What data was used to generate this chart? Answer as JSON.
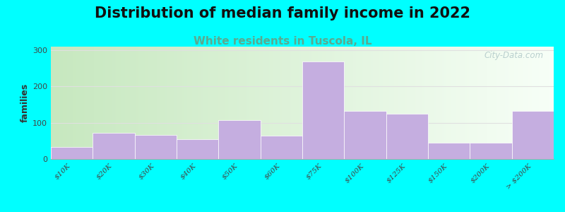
{
  "title": "Distribution of median family income in 2022",
  "subtitle": "White residents in Tuscola, IL",
  "ylabel": "families",
  "categories": [
    "$10K",
    "$20K",
    "$30K",
    "$40K",
    "$50K",
    "$60K",
    "$75K",
    "$100K",
    "$125K",
    "$150K",
    "$200K",
    "> $200K"
  ],
  "values": [
    33,
    72,
    67,
    55,
    107,
    65,
    270,
    133,
    125,
    45,
    45,
    133
  ],
  "bar_color": "#c5aee0",
  "bar_edge_color": "#ffffff",
  "background_outer": "#00ffff",
  "bg_left_color": "#c8e8c0",
  "bg_right_color": "#f0f8f0",
  "yticks": [
    0,
    100,
    200,
    300
  ],
  "ylim": [
    0,
    310
  ],
  "grid_color": "#e0e0e0",
  "title_fontsize": 15,
  "subtitle_fontsize": 11,
  "subtitle_color": "#5aaa90",
  "ylabel_fontsize": 9,
  "watermark": "City-Data.com",
  "watermark_color": "#b0c8c8"
}
